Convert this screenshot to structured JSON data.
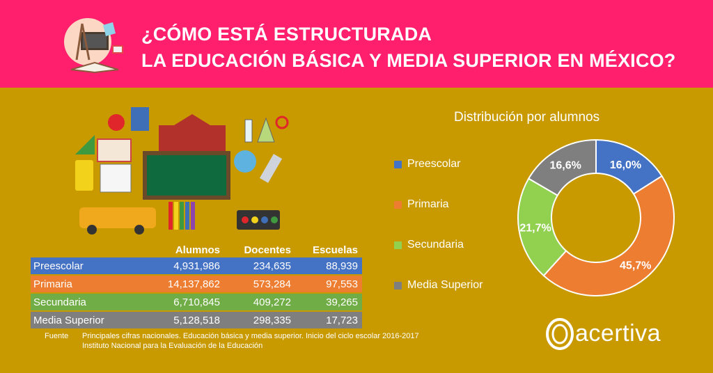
{
  "header": {
    "title_line1": "¿CÓMO ESTÁ ESTRUCTURADA",
    "title_line2": "LA EDUCACIÓN BÁSICA Y MEDIA SUPERIOR EN MÉXICO?",
    "background": "#ff1f6d"
  },
  "table": {
    "headers": [
      "Alumnos",
      "Docentes",
      "Escuelas"
    ],
    "rows": [
      {
        "label": "Preescolar",
        "alumnos": "4,931,986",
        "docentes": "234,635",
        "escuelas": "88,939",
        "color": "#4472c4"
      },
      {
        "label": "Primaria",
        "alumnos": "14,137,862",
        "docentes": "573,284",
        "escuelas": "97,553",
        "color": "#ed7d31"
      },
      {
        "label": "Secundaria",
        "alumnos": "6,710,845",
        "docentes": "409,272",
        "escuelas": "39,265",
        "color": "#70ad47"
      },
      {
        "label": "Media Superior",
        "alumnos": "5,128,518",
        "docentes": "298,335",
        "escuelas": "17,723",
        "color": "#7f7f7f"
      }
    ]
  },
  "source": {
    "label": "Fuente",
    "line1": "Principales cifras nacionales. Educación básica y media superior. Inicio del ciclo escolar 2016-2017",
    "line2": "Instituto Nacional para la Evaluación de la Educación"
  },
  "brand": {
    "name": "acertiva"
  },
  "chart_data": {
    "type": "pie",
    "title": "Distribución por alumnos",
    "categories": [
      "Preescolar",
      "Primaria",
      "Secundaria",
      "Media Superior"
    ],
    "values": [
      16.0,
      45.7,
      21.7,
      16.6
    ],
    "labels": [
      "16,0%",
      "45,7%",
      "21,7%",
      "16,6%"
    ],
    "colors": [
      "#4472c4",
      "#ed7d31",
      "#92d050",
      "#7f7f7f"
    ],
    "style": "donut",
    "legend_position": "left"
  }
}
